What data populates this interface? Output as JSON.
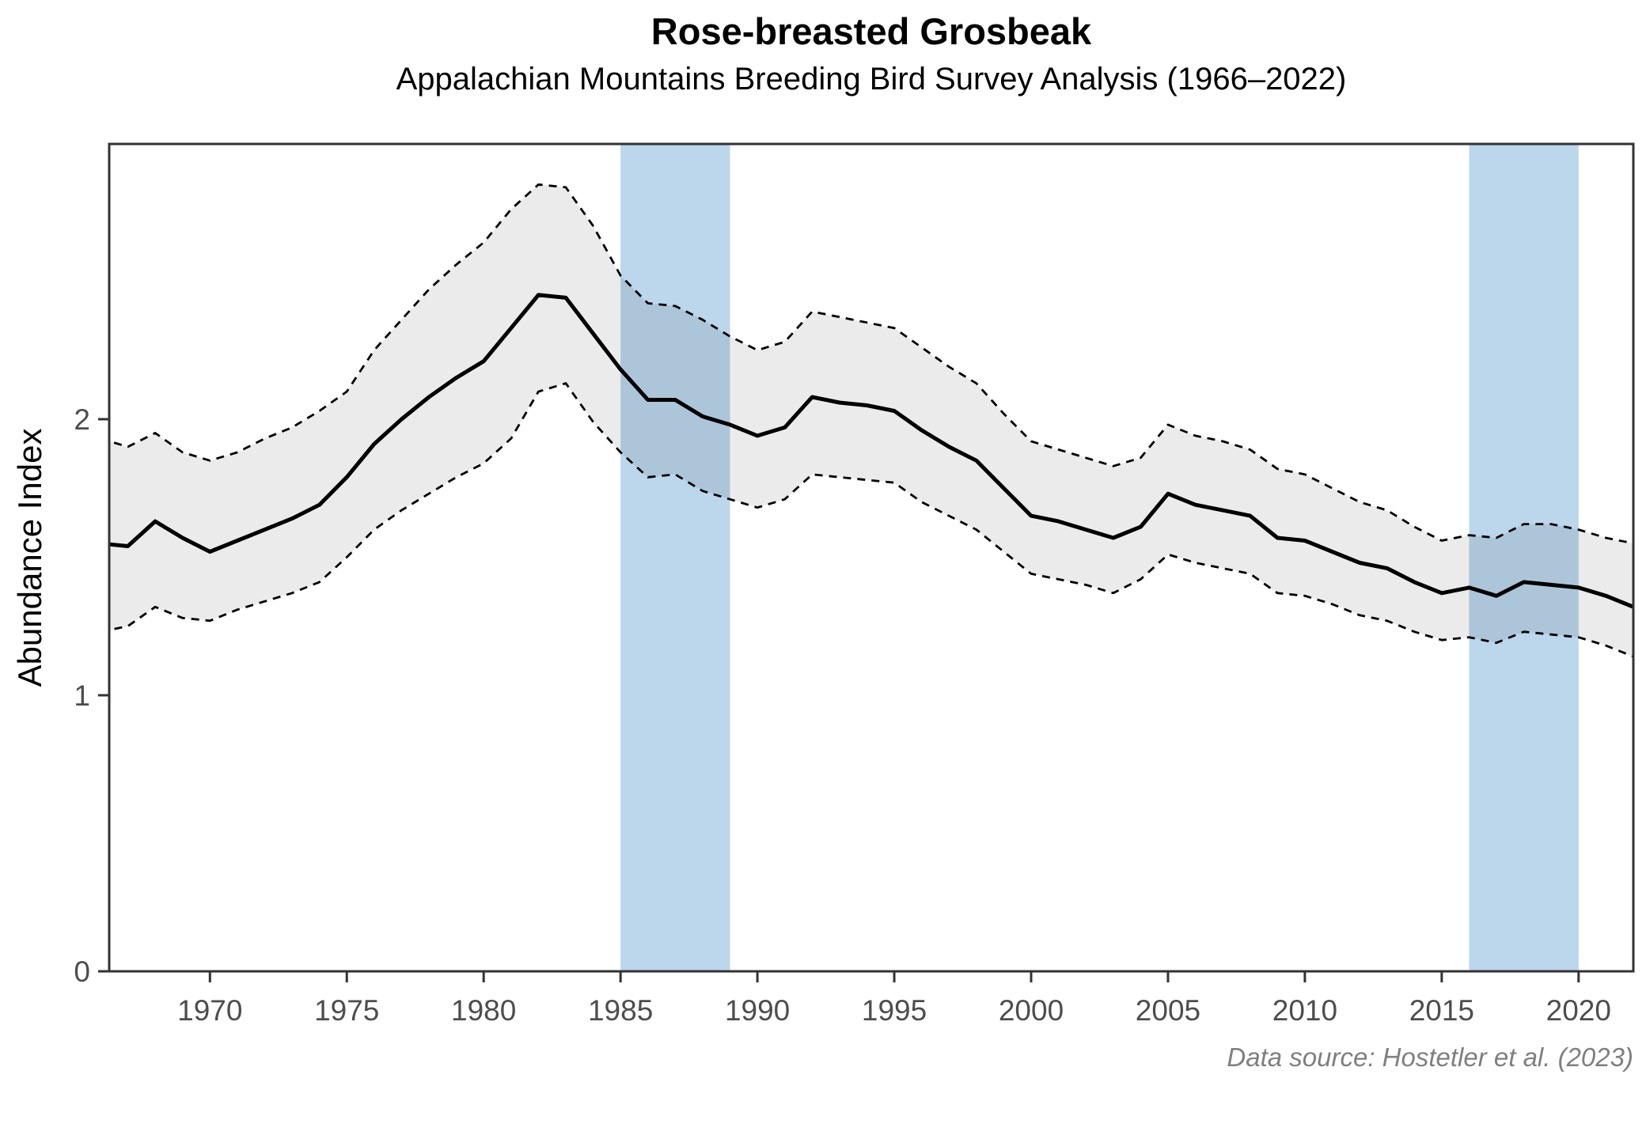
{
  "header": {
    "title": "Rose-breasted Grosbeak",
    "subtitle": "Appalachian Mountains Breeding Bird Survey Analysis (1966–2022)"
  },
  "caption": "Data source: Hostetler et al. (2023)",
  "chart_data": {
    "type": "line",
    "title": "Rose-breasted Grosbeak",
    "subtitle": "Appalachian Mountains Breeding Bird Survey Analysis (1966–2022)",
    "xlabel": "",
    "ylabel": "Abundance Index",
    "grid": false,
    "legend": "none",
    "xlim": [
      1966.32,
      2022
    ],
    "ylim": [
      0,
      2.997
    ],
    "x_ticks": [
      1970,
      1975,
      1980,
      1985,
      1990,
      1995,
      2000,
      2005,
      2010,
      2015,
      2020
    ],
    "y_ticks": [
      0,
      1,
      2
    ],
    "band_color": "#bcd6ec",
    "ribbon_fill": "rgba(0,0,0,0.08)",
    "line_color": "#000000",
    "border_color": "#333333",
    "tick_label_color": "#4d4d4d",
    "highlight_bands": [
      {
        "from": 1985,
        "to": 1989
      },
      {
        "from": 2016,
        "to": 2020
      }
    ],
    "x": [
      1966,
      1967,
      1968,
      1969,
      1970,
      1971,
      1972,
      1973,
      1974,
      1975,
      1976,
      1977,
      1978,
      1979,
      1980,
      1981,
      1982,
      1983,
      1984,
      1985,
      1986,
      1987,
      1988,
      1989,
      1990,
      1991,
      1992,
      1993,
      1994,
      1995,
      1996,
      1997,
      1998,
      1999,
      2000,
      2001,
      2002,
      2003,
      2004,
      2005,
      2006,
      2007,
      2008,
      2009,
      2010,
      2011,
      2012,
      2013,
      2014,
      2015,
      2016,
      2017,
      2018,
      2019,
      2020,
      2021,
      2022
    ],
    "series": [
      {
        "name": "Abundance index",
        "role": "mean",
        "style": "solid",
        "values": [
          1.55,
          1.54,
          1.63,
          1.57,
          1.52,
          1.56,
          1.6,
          1.64,
          1.69,
          1.79,
          1.91,
          2.0,
          2.08,
          2.15,
          2.21,
          2.33,
          2.45,
          2.44,
          2.31,
          2.18,
          2.07,
          2.07,
          2.01,
          1.98,
          1.94,
          1.97,
          2.08,
          2.06,
          2.05,
          2.03,
          1.96,
          1.9,
          1.85,
          1.75,
          1.65,
          1.63,
          1.6,
          1.57,
          1.61,
          1.73,
          1.69,
          1.67,
          1.65,
          1.57,
          1.56,
          1.52,
          1.48,
          1.46,
          1.41,
          1.37,
          1.39,
          1.36,
          1.41,
          1.4,
          1.39,
          1.36,
          1.32
        ]
      },
      {
        "name": "Upper 95% CI",
        "role": "upper",
        "style": "dashed",
        "values": [
          1.93,
          1.9,
          1.95,
          1.88,
          1.85,
          1.88,
          1.93,
          1.97,
          2.03,
          2.1,
          2.25,
          2.36,
          2.47,
          2.56,
          2.64,
          2.76,
          2.85,
          2.84,
          2.7,
          2.52,
          2.42,
          2.41,
          2.36,
          2.3,
          2.25,
          2.28,
          2.39,
          2.37,
          2.35,
          2.33,
          2.26,
          2.19,
          2.13,
          2.02,
          1.92,
          1.89,
          1.86,
          1.83,
          1.86,
          1.98,
          1.94,
          1.92,
          1.89,
          1.82,
          1.8,
          1.75,
          1.7,
          1.67,
          1.61,
          1.56,
          1.58,
          1.57,
          1.62,
          1.62,
          1.6,
          1.57,
          1.55
        ]
      },
      {
        "name": "Lower 95% CI",
        "role": "lower",
        "style": "dashed",
        "values": [
          1.23,
          1.25,
          1.32,
          1.28,
          1.27,
          1.31,
          1.34,
          1.37,
          1.41,
          1.5,
          1.6,
          1.67,
          1.73,
          1.79,
          1.84,
          1.93,
          2.1,
          2.13,
          1.99,
          1.88,
          1.79,
          1.8,
          1.74,
          1.71,
          1.68,
          1.71,
          1.8,
          1.79,
          1.78,
          1.77,
          1.7,
          1.65,
          1.6,
          1.52,
          1.44,
          1.42,
          1.4,
          1.37,
          1.42,
          1.51,
          1.48,
          1.46,
          1.44,
          1.37,
          1.36,
          1.33,
          1.29,
          1.27,
          1.23,
          1.2,
          1.21,
          1.19,
          1.23,
          1.22,
          1.21,
          1.18,
          1.14
        ]
      }
    ]
  }
}
